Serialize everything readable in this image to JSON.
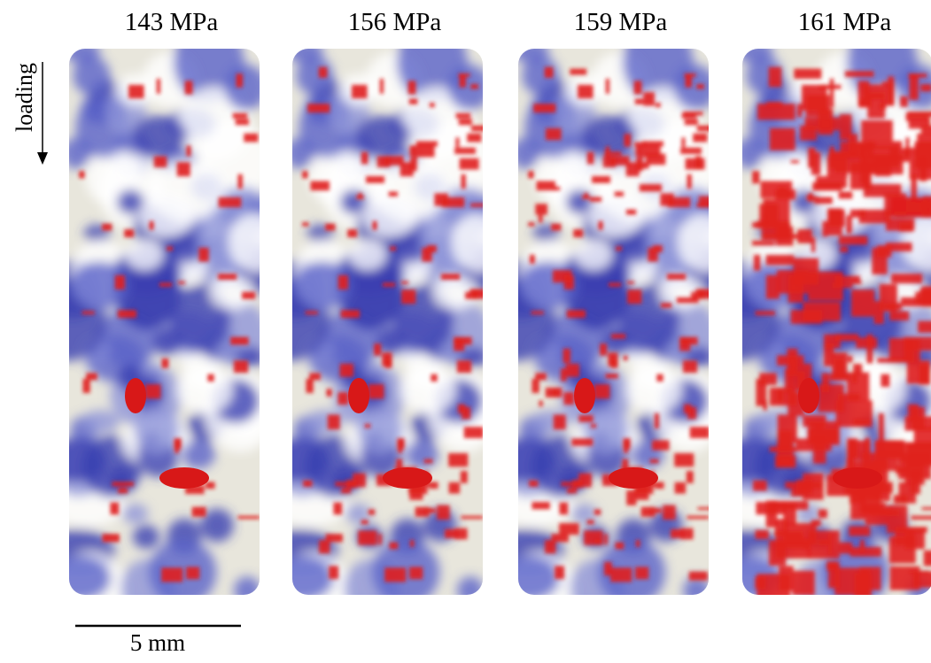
{
  "panels": [
    {
      "label": "143 MPa"
    },
    {
      "label": "156 MPa"
    },
    {
      "label": "159 MPa"
    },
    {
      "label": "161 MPa"
    }
  ],
  "loading_label": "loading",
  "scale_bar": {
    "label": "5 mm"
  }
}
